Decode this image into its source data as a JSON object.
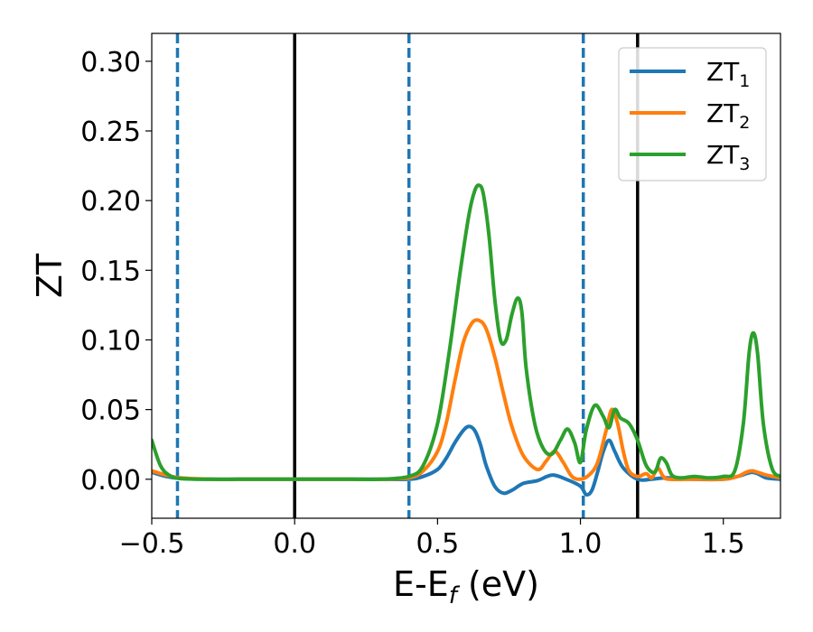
{
  "chart_data": {
    "type": "line",
    "xlabel": "E-E",
    "xlabel_sub": "f",
    "xlabel_unit": " (eV)",
    "ylabel": "ZT",
    "xlim": [
      -0.5,
      1.7
    ],
    "ylim": [
      -0.028,
      0.32
    ],
    "xticks": [
      -0.5,
      0.0,
      0.5,
      1.0,
      1.5
    ],
    "xtick_labels": [
      "−0.5",
      "0.0",
      "0.5",
      "1.0",
      "1.5"
    ],
    "yticks": [
      0.0,
      0.05,
      0.1,
      0.15,
      0.2,
      0.25,
      0.3
    ],
    "ytick_labels": [
      "0.00",
      "0.05",
      "0.10",
      "0.15",
      "0.20",
      "0.25",
      "0.30"
    ],
    "grid": false,
    "legend_position": "top-right",
    "vlines": [
      {
        "x": -0.41,
        "style": "dashed",
        "color": "#1f77b4"
      },
      {
        "x": 0.0,
        "style": "solid",
        "color": "#000000"
      },
      {
        "x": 0.4,
        "style": "dashed",
        "color": "#1f77b4"
      },
      {
        "x": 1.01,
        "style": "dashed",
        "color": "#1f77b4"
      },
      {
        "x": 1.2,
        "style": "solid",
        "color": "#000000"
      }
    ],
    "series": [
      {
        "name": "ZT",
        "sub": "1",
        "color": "#1f77b4",
        "x": [
          -0.5,
          -0.45,
          -0.4,
          -0.3,
          -0.2,
          -0.1,
          0.0,
          0.1,
          0.2,
          0.3,
          0.4,
          0.45,
          0.5,
          0.53,
          0.56,
          0.59,
          0.61,
          0.63,
          0.65,
          0.67,
          0.7,
          0.73,
          0.76,
          0.8,
          0.85,
          0.9,
          0.95,
          1.0,
          1.02,
          1.04,
          1.06,
          1.08,
          1.1,
          1.12,
          1.15,
          1.2,
          1.25,
          1.3,
          1.4,
          1.5,
          1.55,
          1.58,
          1.6,
          1.62,
          1.65,
          1.7
        ],
        "y": [
          0.005,
          0.002,
          0.0005,
          0.0,
          0.0,
          0.0,
          0.0,
          0.0,
          0.0,
          0.0,
          0.0,
          0.002,
          0.007,
          0.015,
          0.026,
          0.035,
          0.038,
          0.035,
          0.025,
          0.01,
          -0.005,
          -0.01,
          -0.008,
          -0.003,
          -0.001,
          0.003,
          0.0,
          -0.005,
          -0.011,
          -0.008,
          0.005,
          0.02,
          0.028,
          0.02,
          0.008,
          0.0,
          0.0,
          0.001,
          0.0,
          0.0,
          0.002,
          0.004,
          0.005,
          0.004,
          0.001,
          0.0
        ]
      },
      {
        "name": "ZT",
        "sub": "2",
        "color": "#ff7f0e",
        "x": [
          -0.5,
          -0.45,
          -0.4,
          -0.3,
          -0.2,
          -0.1,
          0.0,
          0.1,
          0.2,
          0.3,
          0.4,
          0.45,
          0.5,
          0.53,
          0.56,
          0.59,
          0.62,
          0.645,
          0.67,
          0.7,
          0.73,
          0.76,
          0.8,
          0.85,
          0.88,
          0.91,
          0.94,
          0.97,
          1.0,
          1.03,
          1.06,
          1.09,
          1.11,
          1.13,
          1.15,
          1.17,
          1.2,
          1.23,
          1.25,
          1.27,
          1.29,
          1.31,
          1.4,
          1.5,
          1.55,
          1.58,
          1.6,
          1.62,
          1.65,
          1.7
        ],
        "y": [
          0.006,
          0.003,
          0.001,
          0.0,
          0.0,
          0.0,
          0.0,
          0.0,
          0.0,
          0.0,
          0.001,
          0.006,
          0.02,
          0.04,
          0.07,
          0.098,
          0.112,
          0.114,
          0.108,
          0.088,
          0.062,
          0.038,
          0.017,
          0.007,
          0.013,
          0.02,
          0.012,
          0.002,
          0.0,
          0.003,
          0.012,
          0.035,
          0.05,
          0.04,
          0.02,
          0.006,
          0.002,
          0.004,
          0.001,
          0.008,
          0.002,
          0.0,
          0.0,
          0.0,
          0.002,
          0.005,
          0.006,
          0.005,
          0.003,
          0.001
        ]
      },
      {
        "name": "ZT",
        "sub": "3",
        "color": "#2ca02c",
        "x": [
          -0.5,
          -0.47,
          -0.44,
          -0.4,
          -0.3,
          -0.2,
          -0.1,
          0.0,
          0.1,
          0.2,
          0.3,
          0.4,
          0.45,
          0.5,
          0.54,
          0.58,
          0.61,
          0.63,
          0.645,
          0.66,
          0.68,
          0.7,
          0.72,
          0.74,
          0.76,
          0.78,
          0.795,
          0.81,
          0.84,
          0.87,
          0.9,
          0.93,
          0.955,
          0.98,
          1.0,
          1.02,
          1.05,
          1.08,
          1.1,
          1.12,
          1.14,
          1.17,
          1.2,
          1.23,
          1.26,
          1.28,
          1.3,
          1.32,
          1.35,
          1.4,
          1.45,
          1.5,
          1.54,
          1.57,
          1.59,
          1.605,
          1.62,
          1.64,
          1.67,
          1.7
        ],
        "y": [
          0.028,
          0.01,
          0.003,
          0.0005,
          0.0,
          0.0,
          0.0,
          0.0,
          0.0,
          0.0,
          0.0,
          0.002,
          0.01,
          0.04,
          0.09,
          0.15,
          0.19,
          0.207,
          0.211,
          0.205,
          0.175,
          0.13,
          0.1,
          0.1,
          0.118,
          0.13,
          0.12,
          0.08,
          0.04,
          0.022,
          0.018,
          0.028,
          0.036,
          0.026,
          0.012,
          0.035,
          0.053,
          0.045,
          0.037,
          0.05,
          0.044,
          0.04,
          0.028,
          0.01,
          0.005,
          0.015,
          0.012,
          0.003,
          0.001,
          0.002,
          0.001,
          0.002,
          0.006,
          0.04,
          0.09,
          0.105,
          0.09,
          0.04,
          0.008,
          0.002
        ]
      }
    ]
  }
}
